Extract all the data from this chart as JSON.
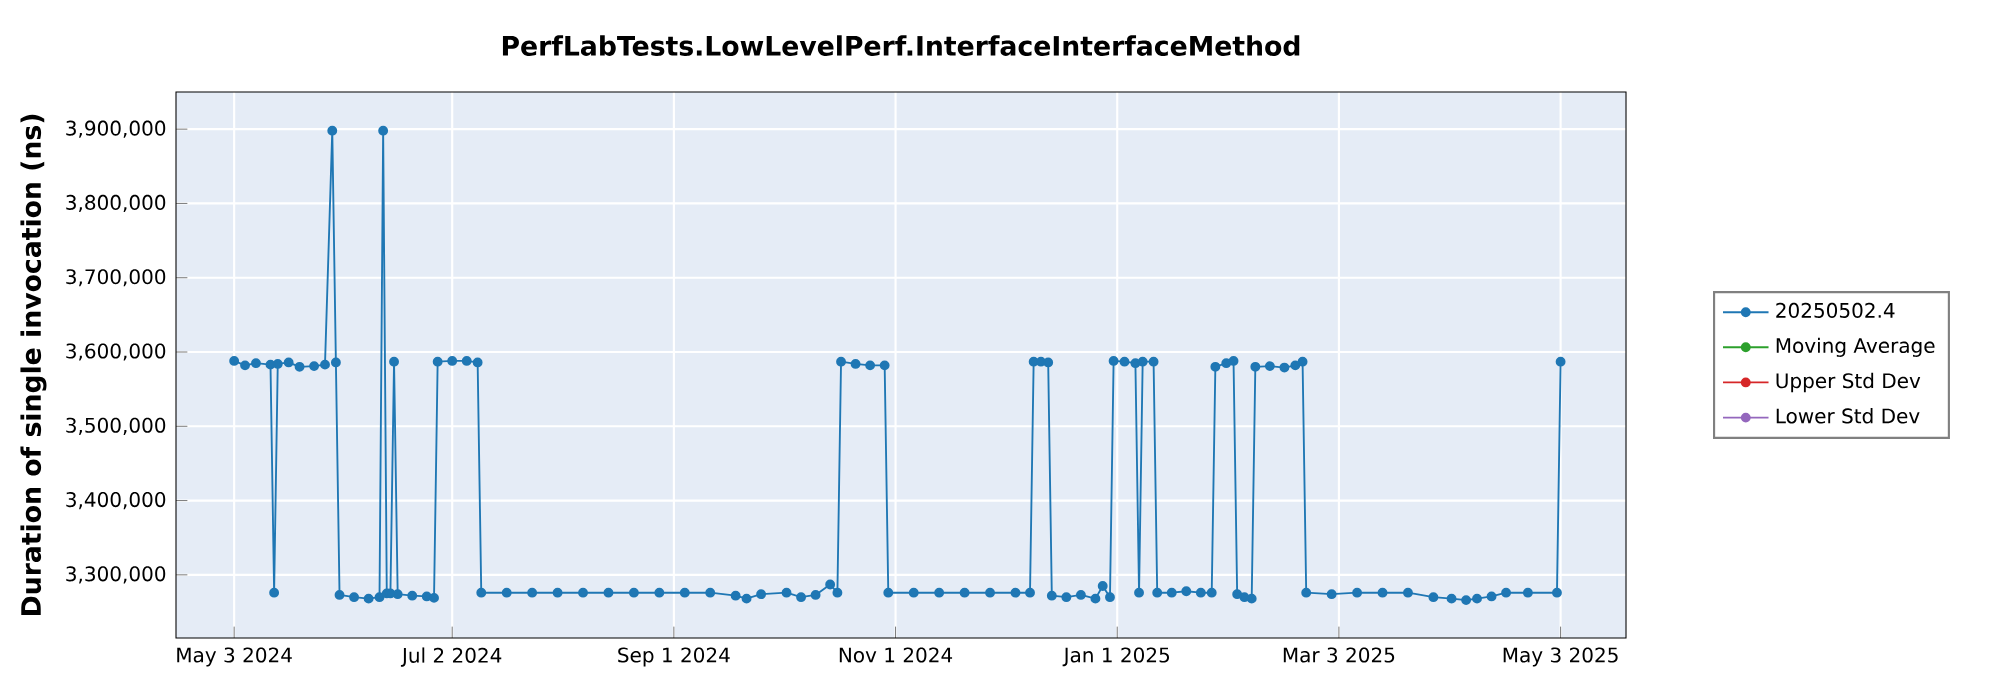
{
  "chart_data": {
    "type": "line",
    "title": "PerfLabTests.LowLevelPerf.InterfaceInterfaceMethod",
    "ylabel": "Duration of single invocation (ns)",
    "x": [
      "2024-05-03",
      "2024-05-06",
      "2024-05-09",
      "2024-05-13",
      "2024-05-14",
      "2024-05-15",
      "2024-05-18",
      "2024-05-21",
      "2024-05-25",
      "2024-05-28",
      "2024-05-30",
      "2024-05-31",
      "2024-06-01",
      "2024-06-05",
      "2024-06-09",
      "2024-06-12",
      "2024-06-13",
      "2024-06-14",
      "2024-06-15",
      "2024-06-16",
      "2024-06-17",
      "2024-06-21",
      "2024-06-25",
      "2024-06-27",
      "2024-06-28",
      "2024-07-02",
      "2024-07-06",
      "2024-07-09",
      "2024-07-10",
      "2024-07-17",
      "2024-07-24",
      "2024-07-31",
      "2024-08-07",
      "2024-08-14",
      "2024-08-21",
      "2024-08-28",
      "2024-09-04",
      "2024-09-11",
      "2024-09-18",
      "2024-09-21",
      "2024-09-25",
      "2024-10-02",
      "2024-10-06",
      "2024-10-10",
      "2024-10-14",
      "2024-10-16",
      "2024-10-17",
      "2024-10-21",
      "2024-10-25",
      "2024-10-29",
      "2024-10-30",
      "2024-11-06",
      "2024-11-13",
      "2024-11-20",
      "2024-11-27",
      "2024-12-04",
      "2024-12-08",
      "2024-12-09",
      "2024-12-11",
      "2024-12-13",
      "2024-12-14",
      "2024-12-18",
      "2024-12-22",
      "2024-12-26",
      "2024-12-28",
      "2024-12-30",
      "2024-12-31",
      "2025-01-03",
      "2025-01-06",
      "2025-01-07",
      "2025-01-08",
      "2025-01-11",
      "2025-01-12",
      "2025-01-16",
      "2025-01-20",
      "2025-01-24",
      "2025-01-27",
      "2025-01-28",
      "2025-01-31",
      "2025-02-02",
      "2025-02-03",
      "2025-02-05",
      "2025-02-07",
      "2025-02-08",
      "2025-02-12",
      "2025-02-16",
      "2025-02-19",
      "2025-02-21",
      "2025-02-22",
      "2025-03-01",
      "2025-03-08",
      "2025-03-15",
      "2025-03-22",
      "2025-03-29",
      "2025-04-03",
      "2025-04-07",
      "2025-04-10",
      "2025-04-14",
      "2025-04-18",
      "2025-04-24",
      "2025-05-02",
      "2025-05-03"
    ],
    "series": [
      {
        "name": "20250502.4",
        "color": "#1f77b4",
        "values": [
          3588000,
          3582000,
          3585000,
          3583000,
          3276000,
          3584000,
          3586000,
          3580000,
          3581000,
          3583000,
          3898000,
          3586000,
          3273000,
          3270000,
          3268000,
          3270000,
          3898000,
          3275000,
          3275000,
          3587000,
          3274000,
          3272000,
          3271000,
          3269000,
          3587000,
          3588000,
          3588000,
          3586000,
          3276000,
          3276000,
          3276000,
          3276000,
          3276000,
          3276000,
          3276000,
          3276000,
          3276000,
          3276000,
          3272000,
          3268000,
          3274000,
          3276000,
          3270000,
          3273000,
          3287000,
          3276000,
          3587000,
          3584000,
          3582000,
          3582000,
          3276000,
          3276000,
          3276000,
          3276000,
          3276000,
          3276000,
          3276000,
          3587000,
          3587000,
          3586000,
          3272000,
          3270000,
          3273000,
          3268000,
          3285000,
          3270000,
          3588000,
          3587000,
          3585000,
          3276000,
          3587000,
          3587000,
          3276000,
          3276000,
          3278000,
          3276000,
          3276000,
          3580000,
          3585000,
          3588000,
          3274000,
          3270000,
          3268000,
          3580000,
          3581000,
          3579000,
          3582000,
          3587000,
          3276000,
          3274000,
          3276000,
          3276000,
          3276000,
          3270000,
          3268000,
          3266000,
          3268000,
          3271000,
          3276000,
          3276000,
          3276000,
          3587000
        ]
      },
      {
        "name": "Moving Average",
        "color": "#2ca02c",
        "values": [
          null,
          null,
          null,
          null,
          null,
          null,
          null,
          null,
          null,
          null,
          null,
          null,
          null,
          null,
          null,
          null,
          null,
          null,
          null,
          null,
          null,
          null,
          null,
          null,
          null,
          null,
          null,
          null,
          null,
          null,
          null,
          null,
          null,
          null,
          null,
          null,
          null,
          null,
          null,
          null,
          null,
          null,
          null,
          null,
          null,
          null,
          null,
          null,
          null,
          null,
          null,
          null,
          null,
          null,
          null,
          null,
          null,
          null,
          null,
          null,
          null,
          null,
          null,
          null,
          null,
          null,
          null,
          null,
          null,
          null,
          null,
          null,
          null,
          null,
          null,
          null,
          null,
          null,
          null,
          null,
          null,
          null,
          null,
          null,
          null,
          null,
          null,
          null,
          null,
          null,
          null,
          null,
          null,
          null,
          null,
          null,
          null,
          null,
          null,
          null,
          null,
          null
        ]
      },
      {
        "name": "Upper Std Dev",
        "color": "#d62728",
        "values": [
          null,
          null,
          null,
          null,
          null,
          null,
          null,
          null,
          null,
          null,
          null,
          null,
          null,
          null,
          null,
          null,
          null,
          null,
          null,
          null,
          null,
          null,
          null,
          null,
          null,
          null,
          null,
          null,
          null,
          null,
          null,
          null,
          null,
          null,
          null,
          null,
          null,
          null,
          null,
          null,
          null,
          null,
          null,
          null,
          null,
          null,
          null,
          null,
          null,
          null,
          null,
          null,
          null,
          null,
          null,
          null,
          null,
          null,
          null,
          null,
          null,
          null,
          null,
          null,
          null,
          null,
          null,
          null,
          null,
          null,
          null,
          null,
          null,
          null,
          null,
          null,
          null,
          null,
          null,
          null,
          null,
          null,
          null,
          null,
          null,
          null,
          null,
          null,
          null,
          null,
          null,
          null,
          null,
          null,
          null,
          null,
          null,
          null,
          null,
          null,
          null,
          null
        ]
      },
      {
        "name": "Lower Std Dev",
        "color": "#9467bd",
        "values": [
          null,
          null,
          null,
          null,
          null,
          null,
          null,
          null,
          null,
          null,
          null,
          null,
          null,
          null,
          null,
          null,
          null,
          null,
          null,
          null,
          null,
          null,
          null,
          null,
          null,
          null,
          null,
          null,
          null,
          null,
          null,
          null,
          null,
          null,
          null,
          null,
          null,
          null,
          null,
          null,
          null,
          null,
          null,
          null,
          null,
          null,
          null,
          null,
          null,
          null,
          null,
          null,
          null,
          null,
          null,
          null,
          null,
          null,
          null,
          null,
          null,
          null,
          null,
          null,
          null,
          null,
          null,
          null,
          null,
          null,
          null,
          null,
          null,
          null,
          null,
          null,
          null,
          null,
          null,
          null,
          null,
          null,
          null,
          null,
          null,
          null,
          null,
          null,
          null,
          null,
          null,
          null,
          null,
          null,
          null,
          null,
          null,
          null,
          null,
          null,
          null,
          null
        ]
      }
    ],
    "xlim": [
      "2024-04-17",
      "2025-05-21"
    ],
    "xticks": [
      {
        "value": "2024-05-03",
        "label": "May 3 2024"
      },
      {
        "value": "2024-07-02",
        "label": "Jul 2 2024"
      },
      {
        "value": "2024-09-01",
        "label": "Sep 1 2024"
      },
      {
        "value": "2024-11-01",
        "label": "Nov 1 2024"
      },
      {
        "value": "2025-01-01",
        "label": "Jan 1 2025"
      },
      {
        "value": "2025-03-03",
        "label": "Mar 3 2025"
      },
      {
        "value": "2025-05-03",
        "label": "May 3 2025"
      }
    ],
    "ylim": [
      3215000,
      3950000
    ],
    "yticks": [
      {
        "value": 3300000,
        "label": "3,300,000"
      },
      {
        "value": 3400000,
        "label": "3,400,000"
      },
      {
        "value": 3500000,
        "label": "3,500,000"
      },
      {
        "value": 3600000,
        "label": "3,600,000"
      },
      {
        "value": 3700000,
        "label": "3,700,000"
      },
      {
        "value": 3800000,
        "label": "3,800,000"
      },
      {
        "value": 3900000,
        "label": "3,900,000"
      }
    ],
    "grid": true,
    "legend": "right",
    "marker": "circle",
    "line_style": "solid"
  }
}
